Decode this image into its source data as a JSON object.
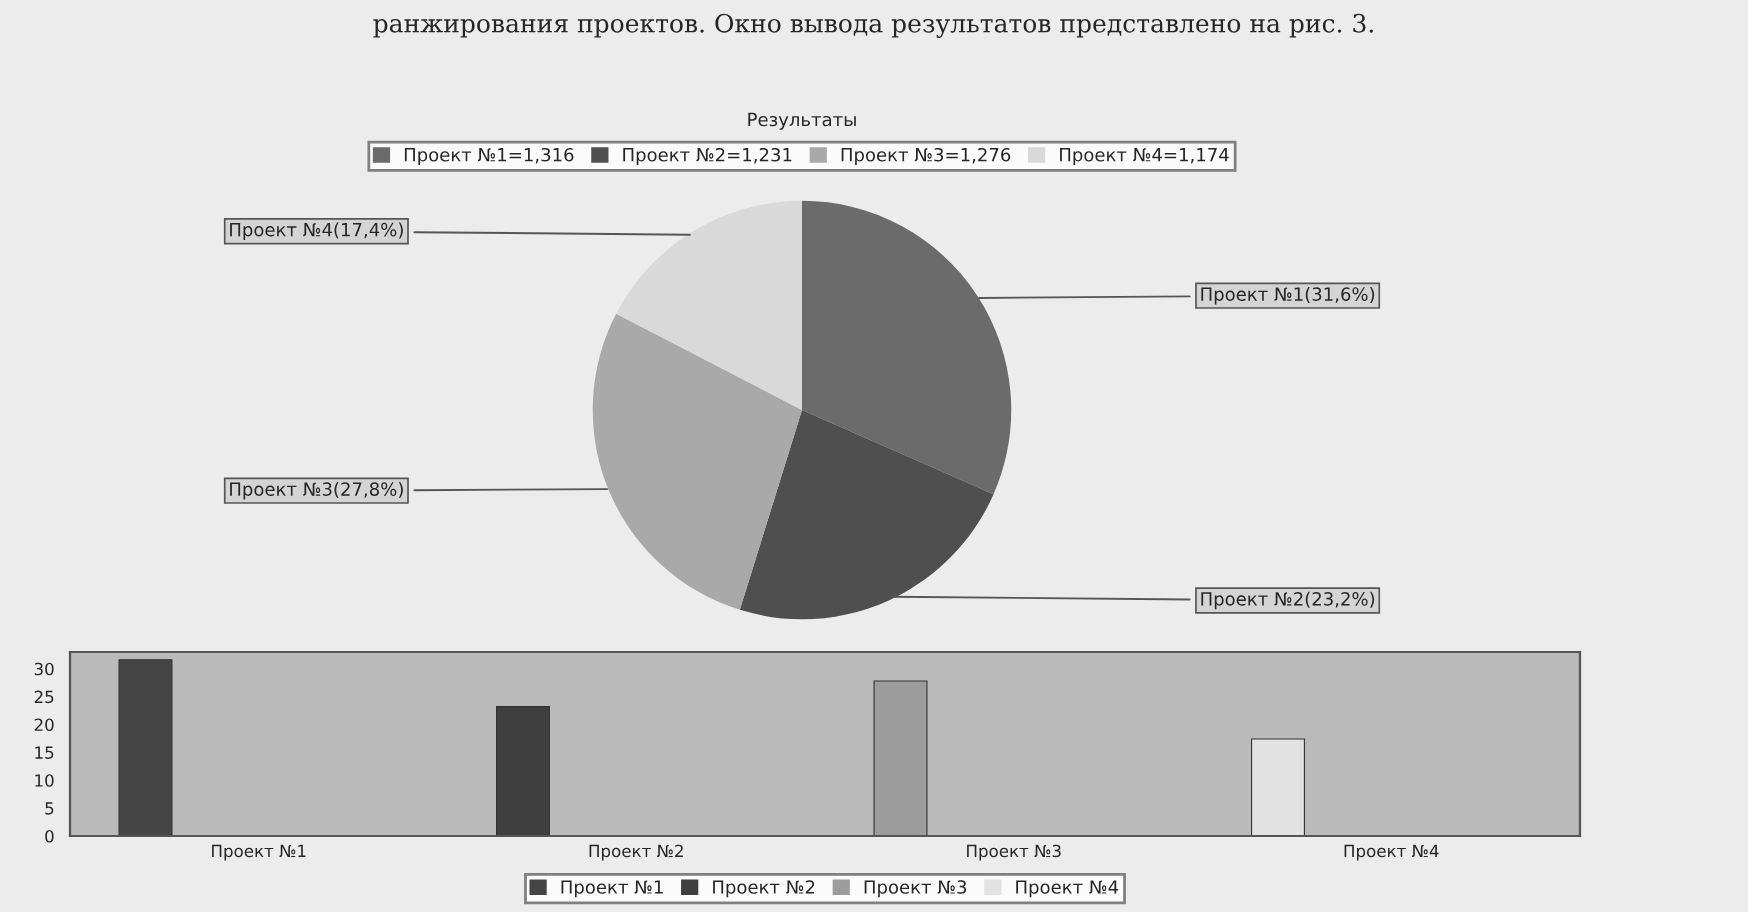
{
  "chart_data": [
    {
      "type": "pie",
      "title": "Результаты",
      "categories": [
        "Проект №1=1,316",
        "Проект №2=1,231",
        "Проект №3=1,276",
        "Проект №4=1,174"
      ],
      "values": [
        31.6,
        23.2,
        27.8,
        17.4
      ],
      "colors": [
        "#6b6b6b",
        "#4f4f4f",
        "#a9a9a9",
        "#d9d9d9"
      ],
      "value_labels": [
        "Проект №1(31,6%)",
        "Проект №2(23,2%)",
        "Проект №3(27,8%)",
        "Проект №4(17,4%)"
      ],
      "legend": "top",
      "annotations": [
        "ранжирования проектов. Окно вывода результатов представлено на рис. 3."
      ]
    },
    {
      "type": "bar",
      "categories": [
        "Проект №1",
        "Проект №2",
        "Проект №3",
        "Проект №4"
      ],
      "series": [
        {
          "name": "Проект №1",
          "color": "#454545",
          "values": [
            31.6,
            null,
            null,
            null
          ]
        },
        {
          "name": "Проект №2",
          "color": "#3f3f3f",
          "values": [
            null,
            23.2,
            null,
            null
          ]
        },
        {
          "name": "Проект №3",
          "color": "#9c9c9c",
          "values": [
            null,
            null,
            27.8,
            null
          ]
        },
        {
          "name": "Проект №4",
          "color": "#e2e2e2",
          "values": [
            null,
            null,
            null,
            17.4
          ]
        }
      ],
      "ylim": [
        0,
        33
      ],
      "yticks": [
        0,
        5,
        10,
        15,
        20,
        25,
        30
      ],
      "grid": false,
      "legend": "bottom"
    }
  ]
}
